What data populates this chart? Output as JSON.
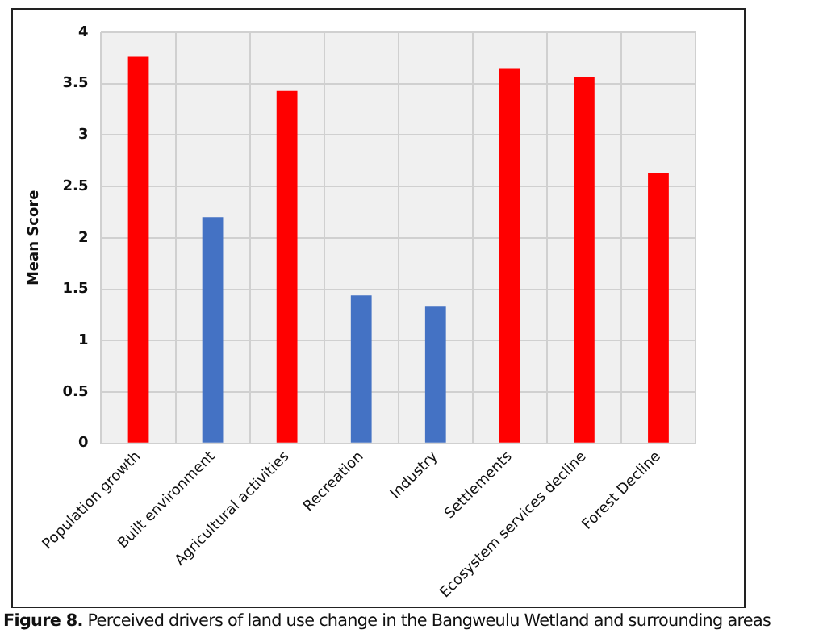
{
  "chart_data": {
    "type": "bar",
    "ylabel": "Mean Score",
    "categories": [
      "Population growth",
      "Built environment",
      "Agricultural activities",
      "Recreation",
      "Industry",
      "Settlements",
      "Ecosystem services decline",
      "Forest Decline"
    ],
    "values": [
      3.76,
      2.2,
      3.43,
      1.44,
      1.33,
      3.65,
      3.56,
      2.63
    ],
    "colors": [
      "#ff0000",
      "#4472c4",
      "#ff0000",
      "#4472c4",
      "#4472c4",
      "#ff0000",
      "#ff0000",
      "#ff0000"
    ],
    "ylim": [
      0,
      4
    ],
    "yticks": [
      0,
      0.5,
      1,
      1.5,
      2,
      2.5,
      3,
      3.5,
      4
    ],
    "grid": true,
    "legend": false,
    "annotations": [
      "Figure 8. Perceived drivers of land use change in the Bangweulu Wetland and surrounding areas"
    ]
  }
}
